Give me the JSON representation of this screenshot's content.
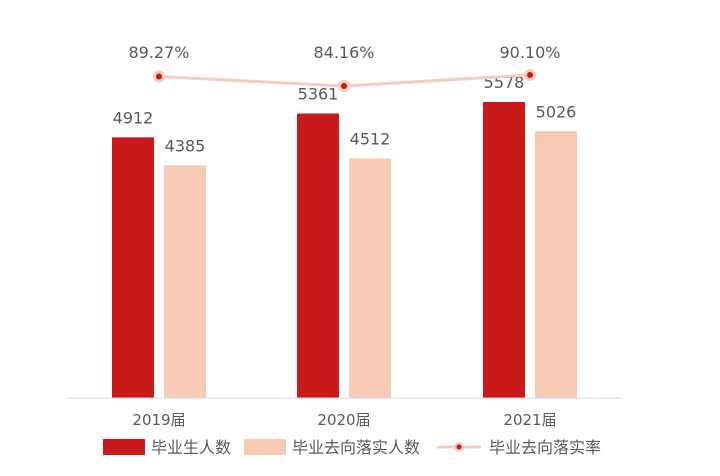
{
  "chart_data": {
    "type": "bar",
    "categories": [
      "2019届",
      "2020届",
      "2021届"
    ],
    "series": [
      {
        "name": "毕业生人数",
        "kind": "bar",
        "color": "#C81A1A",
        "values": [
          4912,
          5361,
          5578
        ]
      },
      {
        "name": "毕业去向落实人数",
        "kind": "bar",
        "color": "#F7CBB4",
        "values": [
          4385,
          4512,
          5026
        ]
      },
      {
        "name": "毕业去向落实率",
        "kind": "line",
        "color": "#F5CDBE",
        "marker_color": "#C81A1A",
        "values": [
          89.27,
          84.16,
          90.1
        ],
        "labels": [
          "89.27%",
          "84.16%",
          "90.10%"
        ]
      }
    ],
    "ylim": [
      0,
      6000
    ],
    "line_ylim": [
      0,
      100
    ],
    "grid": false,
    "legend_position": "bottom"
  }
}
